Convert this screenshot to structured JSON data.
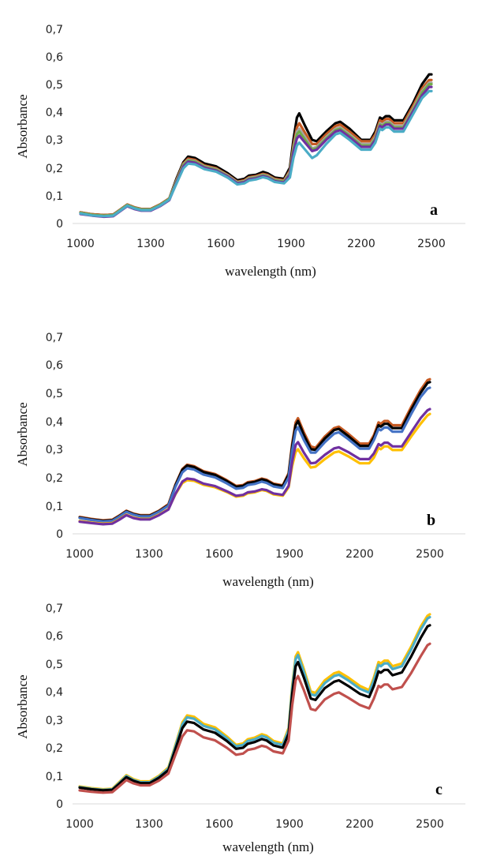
{
  "chart_data": [
    {
      "type": "line",
      "panel_label": "a",
      "xlabel": "wavelength (nm)",
      "ylabel": "Absorbance",
      "xlim": [
        1000,
        2550
      ],
      "ylim": [
        0,
        0.7
      ],
      "xticks": [
        1000,
        1300,
        1600,
        1900,
        2200,
        2500
      ],
      "xtick_labels": [
        "1000",
        "1300",
        "1600",
        "1900",
        "2200",
        "2500"
      ],
      "yticks": [
        0,
        0.1,
        0.2,
        0.3,
        0.4,
        0.5,
        0.6,
        0.7
      ],
      "ytick_labels": [
        "0",
        "0,1",
        "0,2",
        "0,3",
        "0,4",
        "0,5",
        "0,6",
        "0,7"
      ],
      "grid": false,
      "x": [
        1000,
        1050,
        1100,
        1140,
        1170,
        1200,
        1230,
        1260,
        1300,
        1340,
        1380,
        1410,
        1440,
        1460,
        1490,
        1530,
        1580,
        1630,
        1670,
        1700,
        1720,
        1750,
        1780,
        1800,
        1830,
        1870,
        1895,
        1910,
        1925,
        1935,
        1960,
        1990,
        2010,
        2050,
        2090,
        2110,
        2150,
        2200,
        2240,
        2260,
        2280,
        2290,
        2305,
        2320,
        2340,
        2380,
        2420,
        2460,
        2490,
        2500
      ],
      "series": [
        {
          "color": "#000000",
          "values": [
            0.04,
            0.033,
            0.03,
            0.032,
            0.05,
            0.068,
            0.058,
            0.052,
            0.052,
            0.068,
            0.09,
            0.16,
            0.22,
            0.24,
            0.235,
            0.215,
            0.205,
            0.18,
            0.155,
            0.16,
            0.172,
            0.175,
            0.185,
            0.18,
            0.165,
            0.16,
            0.2,
            0.3,
            0.38,
            0.395,
            0.35,
            0.3,
            0.295,
            0.33,
            0.36,
            0.365,
            0.34,
            0.3,
            0.3,
            0.33,
            0.38,
            0.375,
            0.385,
            0.385,
            0.37,
            0.37,
            0.43,
            0.5,
            0.535,
            0.535
          ]
        },
        {
          "color": "#c65a22",
          "values": [
            0.04,
            0.033,
            0.03,
            0.032,
            0.05,
            0.068,
            0.058,
            0.052,
            0.052,
            0.068,
            0.09,
            0.155,
            0.215,
            0.233,
            0.228,
            0.208,
            0.198,
            0.174,
            0.15,
            0.155,
            0.166,
            0.17,
            0.178,
            0.174,
            0.16,
            0.155,
            0.19,
            0.28,
            0.345,
            0.36,
            0.325,
            0.285,
            0.285,
            0.32,
            0.35,
            0.355,
            0.33,
            0.295,
            0.295,
            0.32,
            0.37,
            0.365,
            0.375,
            0.375,
            0.36,
            0.36,
            0.42,
            0.485,
            0.515,
            0.515
          ]
        },
        {
          "color": "#a5a5a5",
          "values": [
            0.038,
            0.031,
            0.028,
            0.03,
            0.048,
            0.066,
            0.056,
            0.05,
            0.05,
            0.066,
            0.088,
            0.152,
            0.212,
            0.228,
            0.224,
            0.205,
            0.195,
            0.172,
            0.148,
            0.152,
            0.163,
            0.167,
            0.175,
            0.171,
            0.157,
            0.152,
            0.185,
            0.27,
            0.33,
            0.34,
            0.31,
            0.27,
            0.275,
            0.31,
            0.34,
            0.345,
            0.32,
            0.285,
            0.285,
            0.31,
            0.36,
            0.355,
            0.365,
            0.365,
            0.35,
            0.35,
            0.41,
            0.475,
            0.505,
            0.505
          ]
        },
        {
          "color": "#70ad47",
          "values": [
            0.038,
            0.031,
            0.028,
            0.03,
            0.048,
            0.066,
            0.056,
            0.05,
            0.05,
            0.066,
            0.088,
            0.15,
            0.21,
            0.226,
            0.222,
            0.203,
            0.193,
            0.17,
            0.146,
            0.15,
            0.161,
            0.165,
            0.173,
            0.169,
            0.155,
            0.15,
            0.18,
            0.265,
            0.32,
            0.33,
            0.3,
            0.265,
            0.27,
            0.305,
            0.335,
            0.34,
            0.315,
            0.28,
            0.28,
            0.305,
            0.355,
            0.35,
            0.36,
            0.36,
            0.345,
            0.345,
            0.405,
            0.47,
            0.5,
            0.5
          ]
        },
        {
          "color": "#7030a0",
          "values": [
            0.034,
            0.028,
            0.024,
            0.026,
            0.044,
            0.062,
            0.052,
            0.046,
            0.046,
            0.062,
            0.084,
            0.146,
            0.205,
            0.222,
            0.218,
            0.2,
            0.19,
            0.168,
            0.144,
            0.148,
            0.158,
            0.162,
            0.17,
            0.166,
            0.152,
            0.147,
            0.175,
            0.255,
            0.305,
            0.315,
            0.29,
            0.26,
            0.265,
            0.3,
            0.33,
            0.335,
            0.31,
            0.275,
            0.275,
            0.3,
            0.35,
            0.345,
            0.355,
            0.355,
            0.34,
            0.34,
            0.4,
            0.46,
            0.49,
            0.49
          ]
        },
        {
          "color": "#4bacc6",
          "values": [
            0.036,
            0.029,
            0.026,
            0.028,
            0.046,
            0.064,
            0.054,
            0.048,
            0.048,
            0.064,
            0.086,
            0.142,
            0.198,
            0.215,
            0.212,
            0.195,
            0.186,
            0.164,
            0.14,
            0.144,
            0.154,
            0.158,
            0.166,
            0.162,
            0.149,
            0.144,
            0.165,
            0.235,
            0.28,
            0.29,
            0.265,
            0.235,
            0.245,
            0.285,
            0.32,
            0.325,
            0.3,
            0.265,
            0.265,
            0.29,
            0.34,
            0.335,
            0.345,
            0.345,
            0.33,
            0.33,
            0.39,
            0.45,
            0.475,
            0.475
          ]
        }
      ]
    },
    {
      "type": "line",
      "panel_label": "b",
      "xlabel": "wavelength (nm)",
      "ylabel": "Absorbance",
      "xlim": [
        1000,
        2550
      ],
      "ylim": [
        0,
        0.7
      ],
      "xticks": [
        1000,
        1300,
        1600,
        1900,
        2200,
        2500
      ],
      "xtick_labels": [
        "1000",
        "1300",
        "1600",
        "1900",
        "2200",
        "2500"
      ],
      "yticks": [
        0,
        0.1,
        0.2,
        0.3,
        0.4,
        0.5,
        0.6,
        0.7
      ],
      "ytick_labels": [
        "0",
        "0,1",
        "0,2",
        "0,3",
        "0,4",
        "0,5",
        "0,6",
        "0,7"
      ],
      "grid": false,
      "x": [
        1000,
        1050,
        1100,
        1140,
        1170,
        1200,
        1230,
        1260,
        1300,
        1340,
        1380,
        1410,
        1440,
        1460,
        1490,
        1530,
        1580,
        1630,
        1670,
        1700,
        1720,
        1750,
        1780,
        1800,
        1830,
        1870,
        1895,
        1910,
        1925,
        1935,
        1960,
        1990,
        2010,
        2050,
        2090,
        2110,
        2150,
        2200,
        2240,
        2260,
        2280,
        2290,
        2305,
        2320,
        2340,
        2380,
        2420,
        2460,
        2490,
        2500
      ],
      "series": [
        {
          "color": "#c65a22",
          "values": [
            0.06,
            0.053,
            0.048,
            0.05,
            0.065,
            0.082,
            0.072,
            0.066,
            0.066,
            0.082,
            0.105,
            0.175,
            0.23,
            0.245,
            0.24,
            0.222,
            0.212,
            0.19,
            0.17,
            0.173,
            0.183,
            0.187,
            0.196,
            0.192,
            0.178,
            0.172,
            0.215,
            0.32,
            0.395,
            0.41,
            0.36,
            0.31,
            0.305,
            0.345,
            0.375,
            0.38,
            0.355,
            0.32,
            0.32,
            0.35,
            0.395,
            0.39,
            0.4,
            0.4,
            0.385,
            0.385,
            0.45,
            0.51,
            0.545,
            0.548
          ]
        },
        {
          "color": "#000000",
          "values": [
            0.058,
            0.051,
            0.046,
            0.048,
            0.063,
            0.08,
            0.07,
            0.064,
            0.064,
            0.08,
            0.102,
            0.172,
            0.227,
            0.242,
            0.237,
            0.219,
            0.209,
            0.187,
            0.167,
            0.17,
            0.18,
            0.184,
            0.193,
            0.189,
            0.175,
            0.169,
            0.21,
            0.31,
            0.385,
            0.4,
            0.35,
            0.3,
            0.298,
            0.338,
            0.368,
            0.372,
            0.347,
            0.312,
            0.312,
            0.342,
            0.385,
            0.38,
            0.39,
            0.39,
            0.375,
            0.375,
            0.44,
            0.5,
            0.535,
            0.538
          ]
        },
        {
          "color": "#4472c4",
          "values": [
            0.056,
            0.049,
            0.044,
            0.046,
            0.061,
            0.078,
            0.068,
            0.062,
            0.062,
            0.078,
            0.1,
            0.167,
            0.218,
            0.232,
            0.228,
            0.21,
            0.2,
            0.179,
            0.16,
            0.163,
            0.173,
            0.177,
            0.185,
            0.181,
            0.168,
            0.162,
            0.2,
            0.295,
            0.365,
            0.378,
            0.333,
            0.288,
            0.288,
            0.325,
            0.355,
            0.36,
            0.336,
            0.302,
            0.302,
            0.332,
            0.372,
            0.367,
            0.377,
            0.377,
            0.362,
            0.362,
            0.425,
            0.485,
            0.515,
            0.518
          ]
        },
        {
          "color": "#ffc000",
          "values": [
            0.045,
            0.04,
            0.036,
            0.038,
            0.052,
            0.068,
            0.058,
            0.053,
            0.053,
            0.068,
            0.088,
            0.14,
            0.18,
            0.19,
            0.188,
            0.174,
            0.165,
            0.148,
            0.132,
            0.135,
            0.144,
            0.147,
            0.155,
            0.152,
            0.14,
            0.135,
            0.165,
            0.24,
            0.29,
            0.3,
            0.268,
            0.235,
            0.238,
            0.265,
            0.288,
            0.292,
            0.275,
            0.25,
            0.25,
            0.27,
            0.305,
            0.3,
            0.31,
            0.31,
            0.297,
            0.297,
            0.345,
            0.39,
            0.42,
            0.425
          ]
        },
        {
          "color": "#7030a0",
          "values": [
            0.043,
            0.038,
            0.034,
            0.036,
            0.05,
            0.066,
            0.056,
            0.051,
            0.051,
            0.066,
            0.086,
            0.142,
            0.185,
            0.196,
            0.193,
            0.178,
            0.169,
            0.151,
            0.135,
            0.138,
            0.147,
            0.15,
            0.158,
            0.155,
            0.143,
            0.138,
            0.17,
            0.255,
            0.315,
            0.325,
            0.288,
            0.25,
            0.252,
            0.28,
            0.303,
            0.307,
            0.29,
            0.265,
            0.265,
            0.285,
            0.318,
            0.313,
            0.323,
            0.323,
            0.31,
            0.31,
            0.36,
            0.41,
            0.438,
            0.442
          ]
        }
      ]
    },
    {
      "type": "line",
      "panel_label": "c",
      "xlabel": "wavelength (nm)",
      "ylabel": "Absorbance",
      "xlim": [
        1000,
        2550
      ],
      "ylim": [
        0,
        0.7
      ],
      "xticks": [
        1000,
        1300,
        1600,
        1900,
        2200,
        2500
      ],
      "xtick_labels": [
        "1000",
        "1300",
        "1600",
        "1900",
        "2200",
        "2500"
      ],
      "yticks": [
        0,
        0.1,
        0.2,
        0.3,
        0.4,
        0.5,
        0.6,
        0.7
      ],
      "ytick_labels": [
        "0",
        "0,1",
        "0,2",
        "0,3",
        "0,4",
        "0,5",
        "0,6",
        "0,7"
      ],
      "grid": false,
      "x": [
        1000,
        1050,
        1100,
        1140,
        1170,
        1200,
        1230,
        1260,
        1300,
        1340,
        1380,
        1410,
        1440,
        1460,
        1490,
        1530,
        1580,
        1630,
        1670,
        1700,
        1720,
        1750,
        1780,
        1800,
        1830,
        1870,
        1895,
        1910,
        1925,
        1935,
        1960,
        1990,
        2010,
        2050,
        2090,
        2110,
        2150,
        2200,
        2240,
        2260,
        2280,
        2290,
        2305,
        2320,
        2340,
        2380,
        2420,
        2460,
        2490,
        2500
      ],
      "series": [
        {
          "color": "#ffc000",
          "values": [
            0.062,
            0.056,
            0.052,
            0.054,
            0.078,
            0.102,
            0.088,
            0.08,
            0.08,
            0.1,
            0.13,
            0.21,
            0.29,
            0.315,
            0.31,
            0.285,
            0.272,
            0.24,
            0.21,
            0.215,
            0.23,
            0.236,
            0.248,
            0.243,
            0.224,
            0.215,
            0.27,
            0.42,
            0.525,
            0.54,
            0.48,
            0.4,
            0.395,
            0.44,
            0.465,
            0.47,
            0.45,
            0.42,
            0.405,
            0.45,
            0.505,
            0.5,
            0.51,
            0.51,
            0.49,
            0.5,
            0.56,
            0.63,
            0.67,
            0.675
          ]
        },
        {
          "color": "#4bacc6",
          "values": [
            0.06,
            0.054,
            0.05,
            0.052,
            0.075,
            0.099,
            0.085,
            0.077,
            0.077,
            0.097,
            0.126,
            0.205,
            0.283,
            0.308,
            0.303,
            0.278,
            0.265,
            0.234,
            0.205,
            0.21,
            0.224,
            0.23,
            0.242,
            0.237,
            0.218,
            0.21,
            0.263,
            0.41,
            0.515,
            0.53,
            0.47,
            0.39,
            0.386,
            0.43,
            0.455,
            0.46,
            0.44,
            0.41,
            0.396,
            0.44,
            0.495,
            0.49,
            0.5,
            0.5,
            0.48,
            0.49,
            0.55,
            0.62,
            0.66,
            0.665
          ]
        },
        {
          "color": "#000000",
          "values": [
            0.058,
            0.052,
            0.048,
            0.05,
            0.072,
            0.095,
            0.082,
            0.074,
            0.074,
            0.093,
            0.12,
            0.195,
            0.27,
            0.293,
            0.288,
            0.265,
            0.253,
            0.224,
            0.196,
            0.2,
            0.214,
            0.22,
            0.231,
            0.226,
            0.208,
            0.2,
            0.25,
            0.39,
            0.49,
            0.505,
            0.45,
            0.375,
            0.37,
            0.412,
            0.435,
            0.44,
            0.42,
            0.392,
            0.38,
            0.42,
            0.472,
            0.467,
            0.477,
            0.477,
            0.458,
            0.468,
            0.525,
            0.59,
            0.632,
            0.636
          ]
        },
        {
          "color": "#c0504d",
          "values": [
            0.048,
            0.043,
            0.04,
            0.042,
            0.063,
            0.085,
            0.073,
            0.066,
            0.066,
            0.083,
            0.108,
            0.175,
            0.24,
            0.262,
            0.258,
            0.237,
            0.226,
            0.2,
            0.175,
            0.179,
            0.192,
            0.197,
            0.207,
            0.203,
            0.187,
            0.18,
            0.225,
            0.35,
            0.44,
            0.455,
            0.405,
            0.338,
            0.333,
            0.372,
            0.392,
            0.397,
            0.378,
            0.352,
            0.34,
            0.375,
            0.42,
            0.415,
            0.425,
            0.425,
            0.408,
            0.416,
            0.466,
            0.525,
            0.565,
            0.57
          ]
        }
      ]
    }
  ]
}
